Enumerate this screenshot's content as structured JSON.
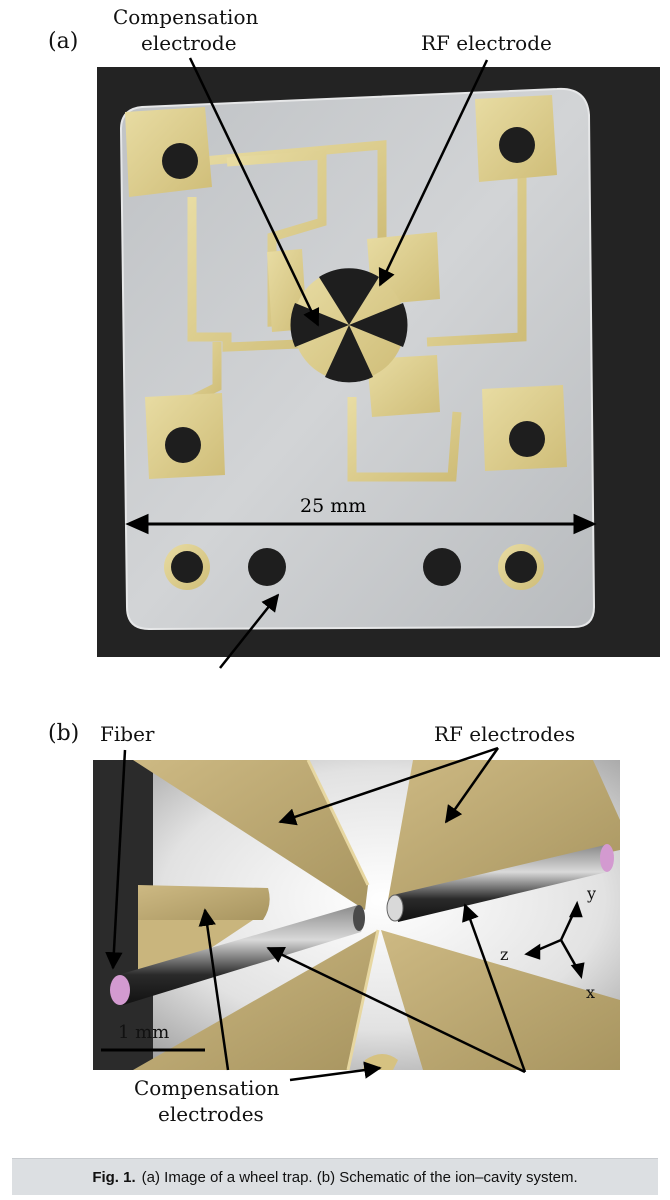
{
  "panel_a": {
    "label": "(a)",
    "annotations": {
      "compensation_electrode": [
        "Compensation",
        "electrode"
      ],
      "rf_electrode": "RF electrode",
      "scale": "25 mm"
    }
  },
  "panel_b": {
    "label": "(b)",
    "annotations": {
      "fiber": "Fiber",
      "rf_electrodes": "RF electrodes",
      "compensation_electrodes": [
        "Compensation",
        "electrodes"
      ],
      "scale": "1 mm"
    },
    "axes": {
      "y": "y",
      "z": "z",
      "x": "x"
    }
  },
  "caption": {
    "fig_number": "Fig. 1.",
    "text": "(a) Image of a wheel trap. (b) Schematic of the ion–cavity system."
  },
  "colors": {
    "gold": "#d9c98a",
    "substrate": "#c9cbcd",
    "background_dark": "#232323"
  }
}
